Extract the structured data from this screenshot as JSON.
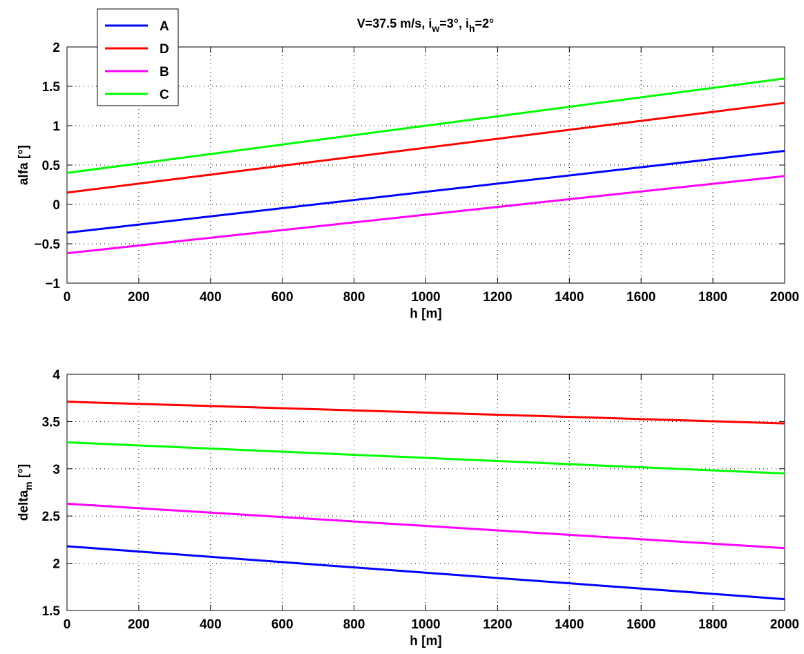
{
  "chart_data": [
    {
      "type": "line",
      "title": {
        "pre": "V=37.5 m/s, i",
        "sub1": "w",
        "mid": "=3°, i",
        "sub2": "h",
        "post": "=2°"
      },
      "xlabel": "h [m]",
      "ylabel": {
        "text": "alfa [°]",
        "sub": ""
      },
      "xlim": [
        0,
        2000
      ],
      "ylim": [
        -1,
        2
      ],
      "xticks": [
        "0",
        "200",
        "400",
        "600",
        "800",
        "1000",
        "1200",
        "1400",
        "1600",
        "1800",
        "2000"
      ],
      "yticks": [
        "−1",
        "−0.5",
        "0",
        "0.5",
        "1",
        "1.5",
        "2"
      ],
      "grid": true,
      "legend_position": "top-left",
      "legend": [
        "A",
        "D",
        "B",
        "C"
      ],
      "series": [
        {
          "name": "A",
          "color": "#0000ff",
          "x": [
            0,
            2000
          ],
          "y": [
            -0.36,
            0.68
          ]
        },
        {
          "name": "D",
          "color": "#ff0000",
          "x": [
            0,
            2000
          ],
          "y": [
            0.15,
            1.29
          ]
        },
        {
          "name": "B",
          "color": "#ff00ff",
          "x": [
            0,
            2000
          ],
          "y": [
            -0.62,
            0.36
          ]
        },
        {
          "name": "C",
          "color": "#00ff00",
          "x": [
            0,
            2000
          ],
          "y": [
            0.4,
            1.6
          ]
        }
      ]
    },
    {
      "type": "line",
      "title": null,
      "xlabel": "h [m]",
      "ylabel": {
        "text": "delta",
        "sub": "m",
        "post": " [°]"
      },
      "xlim": [
        0,
        2000
      ],
      "ylim": [
        1.5,
        4
      ],
      "xticks": [
        "0",
        "200",
        "400",
        "600",
        "800",
        "1000",
        "1200",
        "1400",
        "1600",
        "1800",
        "2000"
      ],
      "yticks": [
        "1.5",
        "2",
        "2.5",
        "3",
        "3.5",
        "4"
      ],
      "grid": true,
      "series": [
        {
          "name": "A",
          "color": "#0000ff",
          "x": [
            0,
            2000
          ],
          "y": [
            2.18,
            1.62
          ]
        },
        {
          "name": "D",
          "color": "#ff0000",
          "x": [
            0,
            2000
          ],
          "y": [
            3.71,
            3.48
          ]
        },
        {
          "name": "B",
          "color": "#ff00ff",
          "x": [
            0,
            2000
          ],
          "y": [
            2.63,
            2.16
          ]
        },
        {
          "name": "C",
          "color": "#00ff00",
          "x": [
            0,
            2000
          ],
          "y": [
            3.28,
            2.95
          ]
        }
      ]
    }
  ]
}
